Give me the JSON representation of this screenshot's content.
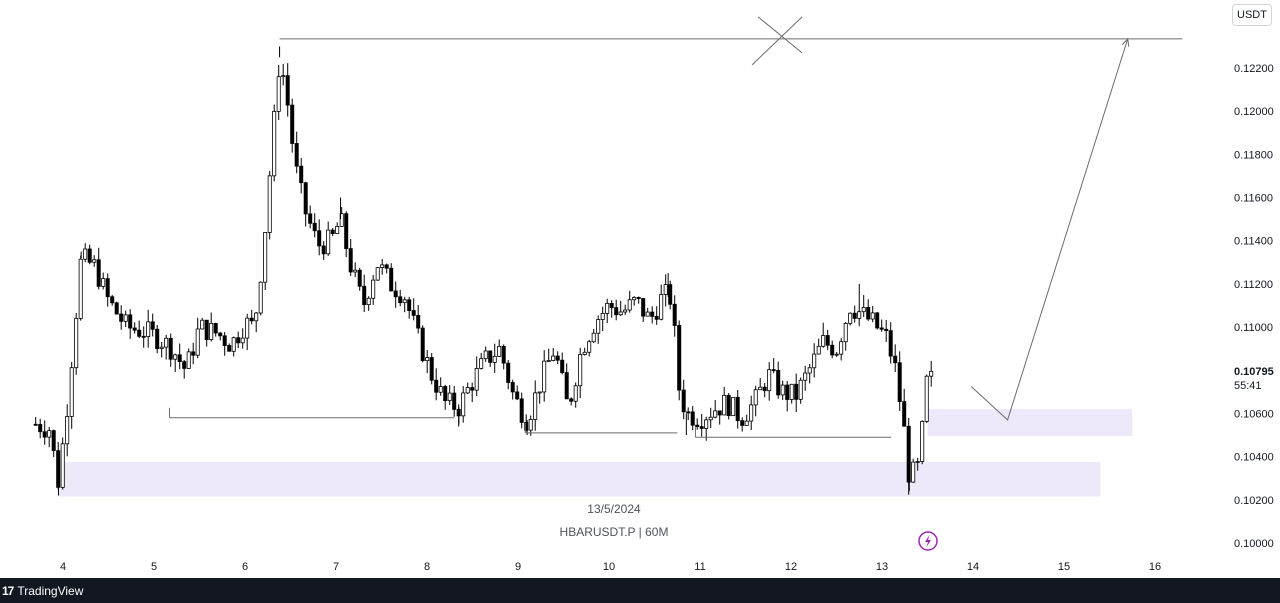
{
  "currency": "USDT",
  "price_axis": {
    "ticks": [
      "0.12200",
      "0.12000",
      "0.11800",
      "0.11600",
      "0.11400",
      "0.11200",
      "0.11000",
      "0.10600",
      "0.10400",
      "0.10200",
      "0.10000"
    ],
    "current_price": "0.10795",
    "countdown": "55:41"
  },
  "time_axis": {
    "ticks": [
      "4",
      "5",
      "6",
      "7",
      "8",
      "9",
      "10",
      "11",
      "12",
      "13",
      "14",
      "15",
      "16"
    ]
  },
  "watermark": {
    "date": "13/5/2024",
    "symbol": "HBARUSDT.P | 60M"
  },
  "footer": {
    "brand": "TradingView",
    "logo": "17"
  },
  "colors": {
    "candle": "#000000",
    "zone": "#ede9fb",
    "drawing": "#6b6b6b",
    "alert_icon": "#9c27b0"
  },
  "chart_data": {
    "type": "candlestick",
    "symbol": "HBARUSDT.P",
    "interval": "60M",
    "ylim": [
      0.0995,
      0.1238
    ],
    "xlim": [
      3.65,
      16.3
    ],
    "close_path": [
      [
        3.7,
        0.1055
      ],
      [
        3.85,
        0.1053
      ],
      [
        3.95,
        0.1028
      ],
      [
        4.05,
        0.1065
      ],
      [
        4.2,
        0.1132
      ],
      [
        4.35,
        0.1128
      ],
      [
        4.5,
        0.1112
      ],
      [
        4.7,
        0.11
      ],
      [
        4.9,
        0.1098
      ],
      [
        5.05,
        0.1095
      ],
      [
        5.2,
        0.109
      ],
      [
        5.35,
        0.108
      ],
      [
        5.5,
        0.11
      ],
      [
        5.7,
        0.1097
      ],
      [
        5.85,
        0.1092
      ],
      [
        6.0,
        0.1102
      ],
      [
        6.1,
        0.11
      ],
      [
        6.2,
        0.1135
      ],
      [
        6.3,
        0.1185
      ],
      [
        6.38,
        0.1225
      ],
      [
        6.45,
        0.121
      ],
      [
        6.55,
        0.1175
      ],
      [
        6.65,
        0.1155
      ],
      [
        6.8,
        0.1138
      ],
      [
        6.95,
        0.114
      ],
      [
        7.05,
        0.115
      ],
      [
        7.15,
        0.113
      ],
      [
        7.3,
        0.111
      ],
      [
        7.45,
        0.113
      ],
      [
        7.6,
        0.112
      ],
      [
        7.75,
        0.1115
      ],
      [
        7.9,
        0.1095
      ],
      [
        8.05,
        0.1078
      ],
      [
        8.2,
        0.1065
      ],
      [
        8.35,
        0.1063
      ],
      [
        8.5,
        0.1075
      ],
      [
        8.65,
        0.1085
      ],
      [
        8.8,
        0.109
      ],
      [
        8.95,
        0.1068
      ],
      [
        9.1,
        0.1057
      ],
      [
        9.25,
        0.1075
      ],
      [
        9.4,
        0.109
      ],
      [
        9.55,
        0.1062
      ],
      [
        9.7,
        0.109
      ],
      [
        9.85,
        0.1103
      ],
      [
        10.0,
        0.111
      ],
      [
        10.15,
        0.1107
      ],
      [
        10.3,
        0.1112
      ],
      [
        10.45,
        0.1103
      ],
      [
        10.6,
        0.1115
      ],
      [
        10.7,
        0.1113
      ],
      [
        10.75,
        0.1075
      ],
      [
        10.85,
        0.106
      ],
      [
        11.0,
        0.1058
      ],
      [
        11.15,
        0.1062
      ],
      [
        11.3,
        0.1065
      ],
      [
        11.45,
        0.1058
      ],
      [
        11.6,
        0.1065
      ],
      [
        11.75,
        0.1078
      ],
      [
        11.9,
        0.107
      ],
      [
        12.05,
        0.1068
      ],
      [
        12.2,
        0.108
      ],
      [
        12.35,
        0.1093
      ],
      [
        12.5,
        0.109
      ],
      [
        12.65,
        0.111
      ],
      [
        12.75,
        0.1107
      ],
      [
        12.9,
        0.1102
      ],
      [
        13.05,
        0.1095
      ],
      [
        13.15,
        0.108
      ],
      [
        13.25,
        0.105
      ],
      [
        13.3,
        0.103
      ],
      [
        13.4,
        0.1035
      ],
      [
        13.45,
        0.1055
      ],
      [
        13.5,
        0.1078
      ],
      [
        13.55,
        0.1079
      ]
    ],
    "last_close": 0.10795,
    "pivot_highs": [
      [
        4.2,
        0.1135
      ],
      [
        6.38,
        0.123
      ],
      [
        7.05,
        0.116
      ],
      [
        10.65,
        0.1125
      ],
      [
        12.75,
        0.112
      ]
    ],
    "pivot_lows": [
      [
        3.95,
        0.1022
      ],
      [
        8.35,
        0.1055
      ],
      [
        9.1,
        0.105
      ],
      [
        10.85,
        0.105
      ],
      [
        13.3,
        0.1024
      ]
    ],
    "drawings": {
      "horizontal_lines": [
        {
          "price": 0.12335,
          "x0": 6.38,
          "x1": 16.3
        },
        {
          "price": 0.1058,
          "x0": 5.17,
          "x1": 8.3
        },
        {
          "price": 0.1051,
          "x0": 9.08,
          "x1": 10.75
        },
        {
          "price": 0.1049,
          "x0": 10.95,
          "x1": 13.1
        }
      ],
      "zones": [
        {
          "x0": 3.95,
          "x1": 15.4,
          "price_top": 0.10375,
          "price_bottom": 0.10215
        },
        {
          "x0": 13.5,
          "x1": 15.75,
          "price_top": 0.1062,
          "price_bottom": 0.10495
        }
      ],
      "projection_path": [
        [
          13.98,
          0.10725
        ],
        [
          14.38,
          0.1057
        ],
        [
          15.7,
          0.12335
        ]
      ],
      "cross_marker": {
        "x": 11.88,
        "price": 0.12335
      }
    }
  }
}
